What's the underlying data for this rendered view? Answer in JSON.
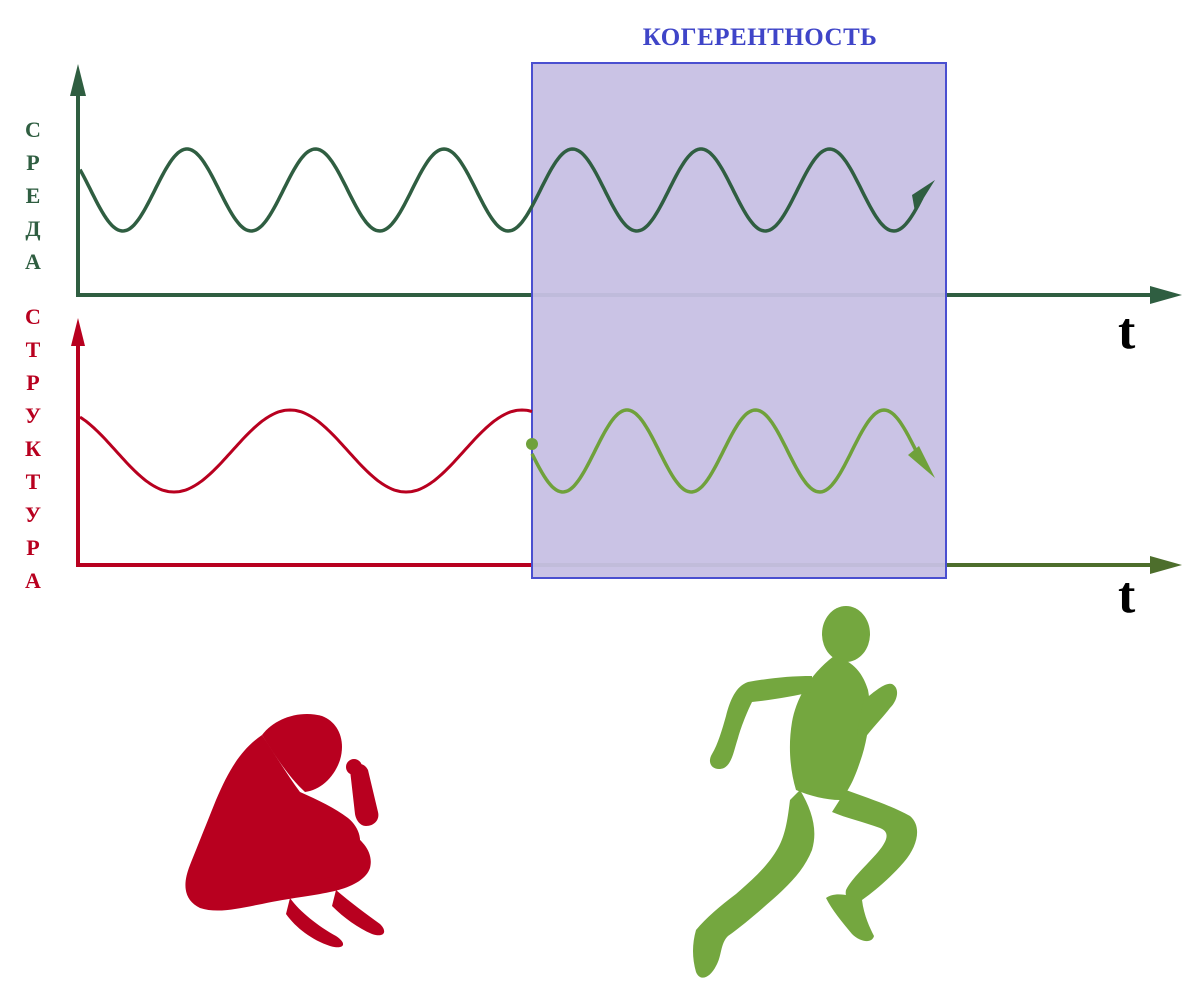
{
  "coherence_label": "КОГЕРЕНТНОСТЬ",
  "environment_label": [
    "С",
    "Р",
    "Е",
    "Д",
    "А"
  ],
  "structure_label": [
    "С",
    "Т",
    "Р",
    "У",
    "К",
    "Т",
    "У",
    "Р",
    "А"
  ],
  "time_axis_label": "t",
  "colors": {
    "environment": "#2f5e41",
    "structure": "#b8001f",
    "coherent_structure": "#6fa13b",
    "coherence_fill": "#c7c0e4",
    "coherence_border": "#4a4fd0",
    "coherence_text": "#3f45c8"
  },
  "figures": {
    "left": "dejected-person-silhouette",
    "right": "running-person-silhouette"
  }
}
